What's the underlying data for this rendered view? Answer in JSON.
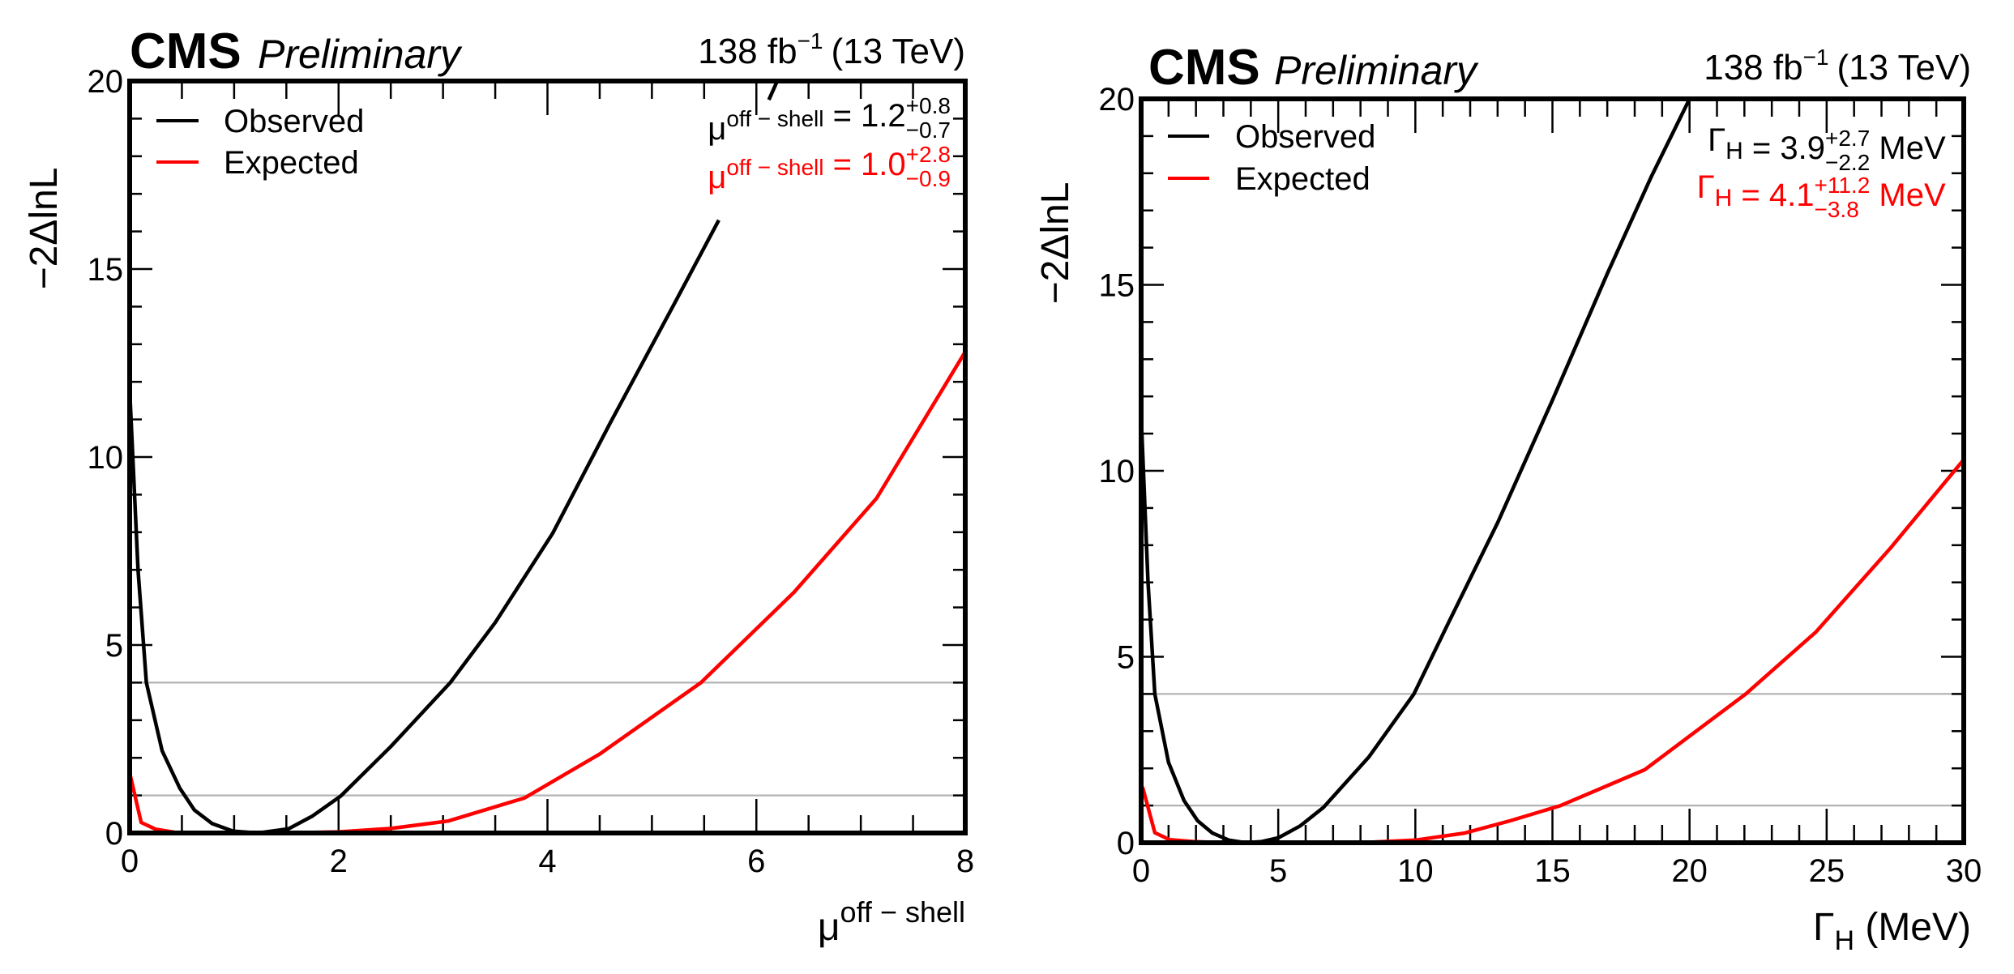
{
  "chart_data": [
    {
      "type": "line",
      "title": "CMS Preliminary",
      "experiment": "CMS",
      "label": "Preliminary",
      "lumi_text": "138 fb",
      "lumi_sup": "−1",
      "energy_text": "(13 TeV)",
      "xlabel": "μ",
      "xlabel_sup": "off − shell",
      "ylabel": "−2ΔlnL",
      "xlim": [
        0,
        8
      ],
      "ylim": [
        0,
        20
      ],
      "x_major_ticks": [
        0,
        2,
        4,
        6,
        8
      ],
      "x_minor_step": 0.5,
      "y_major_ticks": [
        0,
        5,
        10,
        15,
        20
      ],
      "y_minor_step": 1,
      "reference_lines": [
        1,
        4
      ],
      "legend": {
        "position": "top-left",
        "entries": [
          "Observed",
          "Expected"
        ]
      },
      "series": [
        {
          "name": "Observed",
          "color": "#000000",
          "points": [
            [
              0.0,
              11.8
            ],
            [
              0.08,
              7.0
            ],
            [
              0.16,
              4.0
            ],
            [
              0.31,
              2.19
            ],
            [
              0.48,
              1.19
            ],
            [
              0.62,
              0.61
            ],
            [
              0.79,
              0.25
            ],
            [
              0.99,
              0.05
            ],
            [
              1.23,
              0.0
            ],
            [
              1.52,
              0.11
            ],
            [
              1.75,
              0.45
            ],
            [
              2.02,
              0.98
            ],
            [
              2.5,
              2.3
            ],
            [
              3.07,
              4.0
            ],
            [
              3.5,
              5.6
            ],
            [
              4.05,
              7.97
            ],
            [
              4.6,
              10.9
            ],
            [
              5.2,
              14.0
            ],
            [
              5.64,
              16.3
            ]
          ],
          "extra_segment": [
            [
              6.12,
              19.5
            ],
            [
              6.2,
              20.0
            ]
          ]
        },
        {
          "name": "Expected",
          "color": "#ff0000",
          "points": [
            [
              0.0,
              1.6
            ],
            [
              0.11,
              0.28
            ],
            [
              0.25,
              0.1
            ],
            [
              0.43,
              0.02
            ],
            [
              0.7,
              0.0
            ],
            [
              1.0,
              0.0
            ],
            [
              1.5,
              0.0
            ],
            [
              2.0,
              0.03
            ],
            [
              2.5,
              0.12
            ],
            [
              3.05,
              0.32
            ],
            [
              3.78,
              0.93
            ],
            [
              4.5,
              2.1
            ],
            [
              5.47,
              4.0
            ],
            [
              6.36,
              6.4
            ],
            [
              7.15,
              8.9
            ],
            [
              8.0,
              12.8
            ]
          ]
        }
      ],
      "annotations": [
        {
          "symbol": "μ",
          "sup": "off − shell",
          "eq": " = 1.2",
          "plus": "+0.8",
          "minus": "−0.7",
          "unit": "",
          "color": "#000000"
        },
        {
          "symbol": "μ",
          "sup": "off − shell",
          "eq": " = 1.0",
          "plus": "+2.8",
          "minus": "−0.9",
          "unit": "",
          "color": "#ff0000"
        }
      ]
    },
    {
      "type": "line",
      "title": "CMS Preliminary",
      "experiment": "CMS",
      "label": "Preliminary",
      "lumi_text": "138 fb",
      "lumi_sup": "−1",
      "energy_text": "(13 TeV)",
      "xlabel": "Γ",
      "xlabel_sub": "H",
      "xlabel_unit": " (MeV)",
      "ylabel": "−2ΔlnL",
      "xlim": [
        0,
        30
      ],
      "ylim": [
        0,
        20
      ],
      "x_major_ticks": [
        0,
        5,
        10,
        15,
        20,
        25,
        30
      ],
      "x_minor_step": 1,
      "y_major_ticks": [
        0,
        5,
        10,
        15,
        20
      ],
      "y_minor_step": 1,
      "reference_lines": [
        1,
        4
      ],
      "legend": {
        "position": "top-left",
        "entries": [
          "Observed",
          "Expected"
        ]
      },
      "series": [
        {
          "name": "Observed",
          "color": "#000000",
          "points": [
            [
              0.0,
              11.5
            ],
            [
              0.25,
              7.0
            ],
            [
              0.5,
              4.0
            ],
            [
              1.0,
              2.16
            ],
            [
              1.56,
              1.14
            ],
            [
              2.06,
              0.59
            ],
            [
              2.6,
              0.26
            ],
            [
              3.2,
              0.07
            ],
            [
              3.8,
              0.0
            ],
            [
              4.4,
              0.03
            ],
            [
              5.0,
              0.13
            ],
            [
              5.8,
              0.45
            ],
            [
              6.65,
              0.95
            ],
            [
              8.3,
              2.3
            ],
            [
              9.95,
              4.0
            ],
            [
              11.2,
              5.9
            ],
            [
              13.0,
              8.6
            ],
            [
              15.0,
              11.9
            ],
            [
              17.0,
              15.3
            ],
            [
              18.6,
              17.9
            ],
            [
              20.0,
              20.0
            ]
          ]
        },
        {
          "name": "Expected",
          "color": "#ff0000",
          "points": [
            [
              0.05,
              1.5
            ],
            [
              0.5,
              0.27
            ],
            [
              1.04,
              0.08
            ],
            [
              1.92,
              0.03
            ],
            [
              3.0,
              0.0
            ],
            [
              5.0,
              0.0
            ],
            [
              7.0,
              0.0
            ],
            [
              8.5,
              0.02
            ],
            [
              10.0,
              0.07
            ],
            [
              11.8,
              0.26
            ],
            [
              13.5,
              0.6
            ],
            [
              15.3,
              1.0
            ],
            [
              18.36,
              1.96
            ],
            [
              22.05,
              4.0
            ],
            [
              24.6,
              5.66
            ],
            [
              27.3,
              7.9
            ],
            [
              30.0,
              10.3
            ]
          ]
        }
      ],
      "annotations": [
        {
          "symbol": "Γ",
          "sub": "H",
          "eq": " = 3.9",
          "plus": "+2.7",
          "minus": "−2.2",
          "unit": " MeV",
          "color": "#000000"
        },
        {
          "symbol": "Γ",
          "sub": "H",
          "eq": " = 4.1",
          "plus": "+11.2",
          "minus": "−3.8",
          "unit": " MeV",
          "color": "#ff0000"
        }
      ]
    }
  ]
}
